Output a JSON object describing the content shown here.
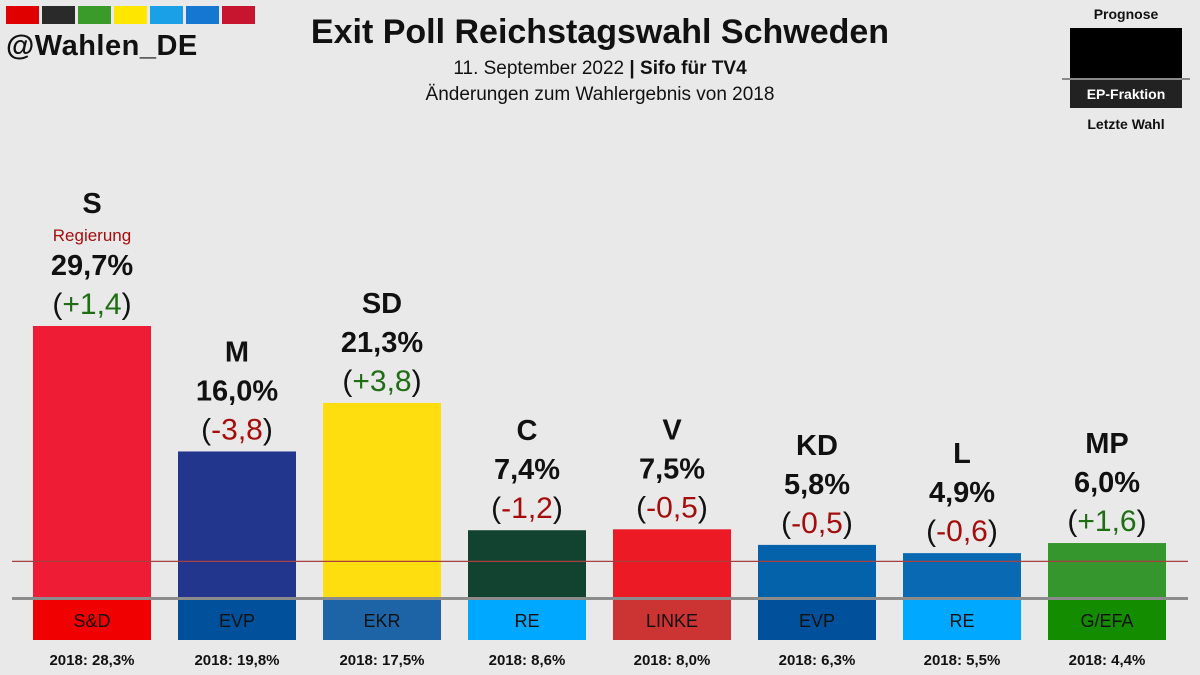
{
  "brand": "@Wahlen_DE",
  "brand_colors": [
    "#e10000",
    "#2a2a2a",
    "#3a9a2a",
    "#ffe600",
    "#1aa0e6",
    "#1577d1",
    "#c8152f"
  ],
  "header": {
    "title": "Exit Poll Reichstagswahl Schweden",
    "date": "11. September 2022",
    "separator": "|",
    "source": "Sifo für TV4",
    "subtitle": "Änderungen zum Wahlergebnis von 2018"
  },
  "legend": {
    "top": "Prognose",
    "ep": "EP-Fraktion",
    "bottom": "Letzte Wahl"
  },
  "chart_data": {
    "type": "bar",
    "categories": [
      "S",
      "M",
      "SD",
      "C",
      "V",
      "KD",
      "L",
      "MP"
    ],
    "values": [
      29.7,
      16.0,
      21.3,
      7.4,
      7.5,
      5.8,
      4.9,
      6.0
    ],
    "value_labels": [
      "29,7%",
      "16,0%",
      "21,3%",
      "7,4%",
      "7,5%",
      "5,8%",
      "4,9%",
      "6,0%"
    ],
    "change_labels": [
      "+1,4",
      "-3,8",
      "+3,8",
      "-1,2",
      "-0,5",
      "-0,5",
      "-0,6",
      "+1,6"
    ],
    "change_values": [
      1.4,
      -3.8,
      3.8,
      -1.2,
      -0.5,
      -0.5,
      -0.6,
      1.6
    ],
    "previous_labels": [
      "2018: 28,3%",
      "2018: 19,8%",
      "2018: 17,5%",
      "2018: 8,6%",
      "2018: 8,0%",
      "2018: 6,3%",
      "2018: 5,5%",
      "2018: 4,4%"
    ],
    "previous_values": [
      28.3,
      19.8,
      17.5,
      8.6,
      8.0,
      6.3,
      5.5,
      4.4
    ],
    "ep_groups": [
      "S&D",
      "EVP",
      "EKR",
      "RE",
      "LINKE",
      "EVP",
      "RE",
      "G/EFA"
    ],
    "notes": [
      "Regierung",
      "",
      "",
      "",
      "",
      "",
      "",
      ""
    ],
    "bar_colors": [
      "#ee1c35",
      "#22368e",
      "#fede0f",
      "#124330",
      "#eb1a24",
      "#0362a9",
      "#0969b2",
      "#36962e"
    ],
    "ep_colors": [
      "#f00000",
      "#01509b",
      "#1d64a6",
      "#00a8ff",
      "#cc3333",
      "#01509b",
      "#00a8ff",
      "#148c00"
    ],
    "threshold": 4,
    "positive_color": "#1f6e14",
    "negative_color": "#a50d0d",
    "note_color": "#a50d0d",
    "threshold_color": "#a84040"
  }
}
